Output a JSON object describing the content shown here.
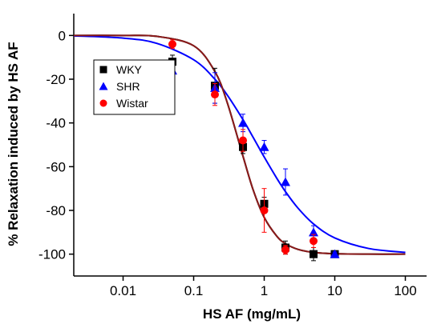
{
  "chart_data": {
    "type": "scatter",
    "xlabel": "HS AF (mg/mL)",
    "ylabel": "% Relaxation induced by HS AF",
    "xscale": "log",
    "xlim": [
      0.002,
      200
    ],
    "xticks": [
      0.01,
      0.1,
      1,
      10,
      100
    ],
    "ylim": [
      -110,
      10
    ],
    "yticks": [
      0,
      -20,
      -40,
      -60,
      -80,
      -100
    ],
    "legend": "upper left",
    "x": [
      0.05,
      0.2,
      0.5,
      1,
      2,
      5,
      10
    ],
    "series": [
      {
        "name": "WKY",
        "color": "#000000",
        "marker": "square",
        "values": [
          -12,
          -23,
          -51,
          -77,
          -97,
          -100,
          -100
        ],
        "errors": [
          3,
          8,
          3,
          3,
          3,
          3,
          1
        ]
      },
      {
        "name": "SHR",
        "color": "#0000ff",
        "marker": "triangle",
        "values": [
          -16,
          -24,
          -40,
          -51,
          -67,
          -90,
          -100
        ],
        "errors": [
          4,
          7,
          4,
          3,
          6,
          3,
          1
        ]
      },
      {
        "name": "Wistar",
        "color": "#ff0000",
        "marker": "circle",
        "values": [
          -4,
          -27,
          -48,
          -80,
          -98,
          -94,
          null
        ],
        "errors": [
          2,
          5,
          5,
          10,
          2,
          3,
          null
        ]
      }
    ],
    "fit_x": [
      0.002,
      0.01,
      0.03,
      0.1,
      0.2,
      0.3,
      0.5,
      0.7,
      1,
      1.5,
      2,
      3,
      5,
      10,
      30,
      100
    ],
    "fits": [
      {
        "color": "#000000",
        "values": [
          0,
          0,
          -0.4,
          -4.7,
          -16.5,
          -30.8,
          -55.2,
          -70.8,
          -83.2,
          -91.7,
          -95.2,
          -97.8,
          -99.2,
          -99.8,
          -100,
          -100
        ]
      },
      {
        "color": "#0000ff",
        "values": [
          -0.2,
          -1.2,
          -3.6,
          -11.1,
          -20,
          -27.3,
          -38.5,
          -46.7,
          -55.6,
          -65.2,
          -71.4,
          -78.9,
          -86.2,
          -92.6,
          -97.4,
          -99.2
        ]
      },
      {
        "color": "#8b1a1a",
        "values": [
          0,
          0,
          -0.4,
          -4.7,
          -16.5,
          -30.8,
          -55.2,
          -70.8,
          -83.2,
          -91.7,
          -95.2,
          -97.8,
          -99.2,
          -99.8,
          -100,
          -100
        ]
      }
    ]
  }
}
